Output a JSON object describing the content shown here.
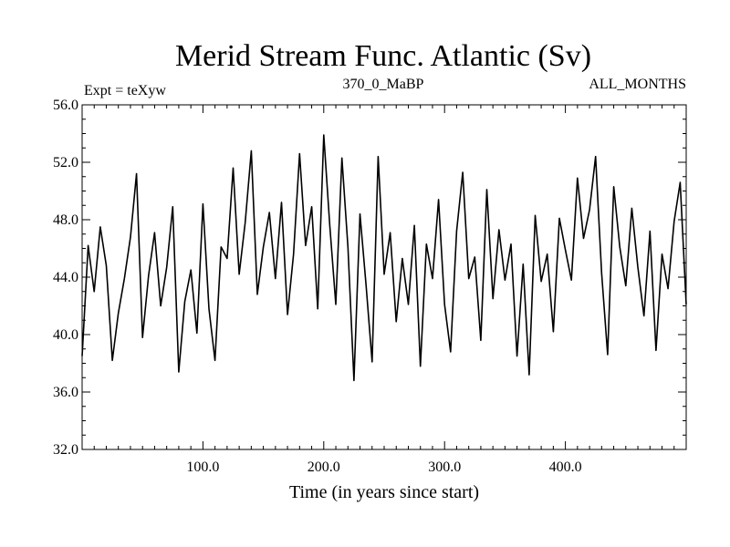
{
  "chart_data": {
    "type": "line",
    "title": "Merid Stream Func. Atlantic (Sv)",
    "header_left": "Expt = teXyw",
    "header_center": "370_0_MaBP",
    "header_right": "ALL_MONTHS",
    "xlabel": "Time (in years since start)",
    "ylabel": "",
    "xlim": [
      0,
      500
    ],
    "ylim": [
      32.0,
      56.0
    ],
    "x_ticks": [
      {
        "value": 100,
        "label": "100.0"
      },
      {
        "value": 200,
        "label": "200.0"
      },
      {
        "value": 300,
        "label": "300.0"
      },
      {
        "value": 400,
        "label": "400.0"
      }
    ],
    "y_ticks": [
      {
        "value": 32,
        "label": "32.0"
      },
      {
        "value": 36,
        "label": "36.0"
      },
      {
        "value": 40,
        "label": "40.0"
      },
      {
        "value": 44,
        "label": "44.0"
      },
      {
        "value": 48,
        "label": "48.0"
      },
      {
        "value": 52,
        "label": "52.0"
      },
      {
        "value": 56,
        "label": "56.0"
      }
    ],
    "series": [
      {
        "color": "#000000",
        "x": [
          0,
          5,
          10,
          15,
          20,
          25,
          30,
          35,
          40,
          45,
          50,
          55,
          60,
          65,
          70,
          75,
          80,
          85,
          90,
          95,
          100,
          105,
          110,
          115,
          120,
          125,
          130,
          135,
          140,
          145,
          150,
          155,
          160,
          165,
          170,
          175,
          180,
          185,
          190,
          195,
          200,
          205,
          210,
          215,
          220,
          225,
          230,
          235,
          240,
          245,
          250,
          255,
          260,
          265,
          270,
          275,
          280,
          285,
          290,
          295,
          300,
          305,
          310,
          315,
          320,
          325,
          330,
          335,
          340,
          345,
          350,
          355,
          360,
          365,
          370,
          375,
          380,
          385,
          390,
          395,
          400,
          405,
          410,
          415,
          420,
          425,
          430,
          435,
          440,
          445,
          450,
          455,
          460,
          465,
          470,
          475,
          480,
          485,
          490,
          495,
          500
        ],
        "y": [
          38.5,
          46.2,
          43.0,
          47.5,
          44.8,
          38.2,
          41.5,
          43.9,
          46.8,
          51.2,
          39.8,
          44.1,
          47.1,
          42.0,
          44.7,
          48.9,
          37.4,
          42.3,
          44.5,
          40.1,
          49.1,
          41.8,
          38.2,
          46.1,
          45.3,
          51.6,
          44.2,
          47.8,
          52.8,
          42.8,
          46.1,
          48.5,
          43.9,
          49.2,
          41.4,
          45.6,
          52.6,
          46.2,
          48.9,
          41.8,
          53.9,
          47.6,
          42.1,
          52.3,
          46.1,
          36.8,
          48.4,
          43.5,
          38.1,
          52.4,
          44.2,
          47.1,
          40.9,
          45.3,
          42.1,
          47.6,
          37.8,
          46.3,
          43.9,
          49.4,
          42.1,
          38.8,
          47.2,
          51.3,
          43.9,
          45.4,
          39.6,
          50.1,
          42.5,
          47.3,
          43.8,
          46.3,
          38.5,
          44.9,
          37.2,
          48.3,
          43.7,
          45.6,
          40.2,
          48.1,
          45.9,
          43.8,
          50.9,
          46.7,
          48.7,
          52.4,
          44.3,
          38.6,
          50.3,
          46.1,
          43.4,
          48.8,
          44.7,
          41.3,
          47.2,
          38.9,
          45.6,
          43.2,
          47.9,
          50.6,
          42.1
        ]
      }
    ]
  }
}
